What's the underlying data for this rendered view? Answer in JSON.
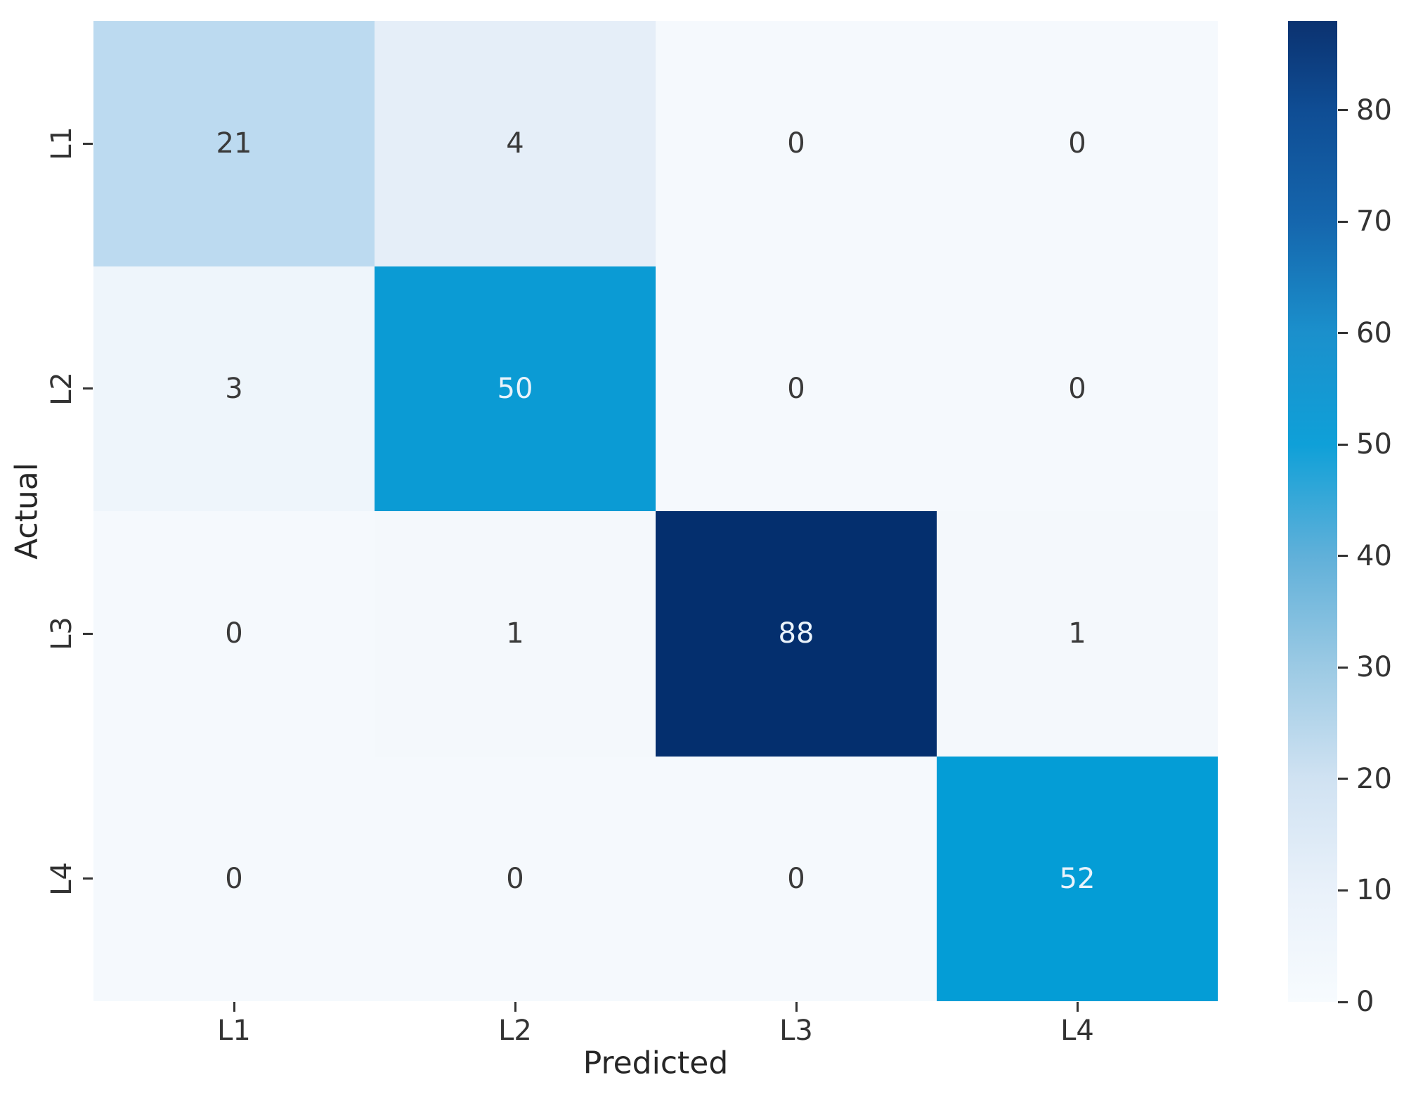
{
  "chart_data": {
    "type": "heatmap",
    "xlabel": "Predicted",
    "ylabel": "Actual",
    "x_categories": [
      "L1",
      "L2",
      "L3",
      "L4"
    ],
    "y_categories": [
      "L1",
      "L2",
      "L3",
      "L4"
    ],
    "matrix": [
      [
        21,
        4,
        0,
        0
      ],
      [
        3,
        50,
        0,
        0
      ],
      [
        0,
        1,
        88,
        1
      ],
      [
        0,
        0,
        0,
        52
      ]
    ],
    "vmin": 0,
    "vmax": 88,
    "colormap": "Blues",
    "colorbar_ticks": [
      0,
      10,
      20,
      30,
      40,
      50,
      60,
      70,
      80
    ],
    "colorbar_position": "right",
    "grid": false
  },
  "colors": {
    "value_colors": {
      "0": "#f5f9fd",
      "1": "#f4f8fc",
      "3": "#eef5fb",
      "4": "#e5eef8",
      "21": "#bcdaf0",
      "50": "#0b9bd4",
      "52": "#049dd6",
      "88": "#042f6e"
    },
    "light_text_values": [
      50,
      52,
      88
    ],
    "annotation_dark": "#3a3a3a",
    "annotation_light": "#eaf3fb",
    "tick_color": "#333333",
    "colorbar_stops": [
      {
        "v": 0,
        "c": "#f7fbfe"
      },
      {
        "v": 10,
        "c": "#e9f1fa"
      },
      {
        "v": 20,
        "c": "#d0e2f2"
      },
      {
        "v": 30,
        "c": "#9ccae4"
      },
      {
        "v": 40,
        "c": "#60b0d9"
      },
      {
        "v": 50,
        "c": "#0fa0d8"
      },
      {
        "v": 60,
        "c": "#1b90cc"
      },
      {
        "v": 70,
        "c": "#1566ad"
      },
      {
        "v": 80,
        "c": "#0f4d94"
      },
      {
        "v": 88,
        "c": "#0b3270"
      }
    ]
  }
}
